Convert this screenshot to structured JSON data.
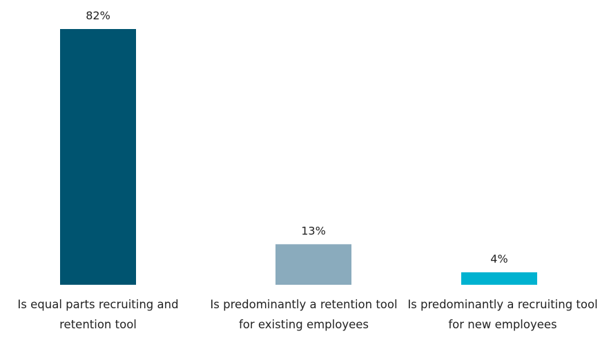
{
  "chart_data": {
    "type": "bar",
    "categories": [
      "Is equal parts recruiting and retention tool",
      "Is predominantly a retention tool for existing employees",
      "Is predominantly a recruiting tool for new employees"
    ],
    "values": [
      82,
      13,
      4
    ],
    "value_labels": [
      "82%",
      "13%",
      "4%"
    ],
    "colors": [
      "#005470",
      "#8aabbd",
      "#00b2d0"
    ]
  }
}
